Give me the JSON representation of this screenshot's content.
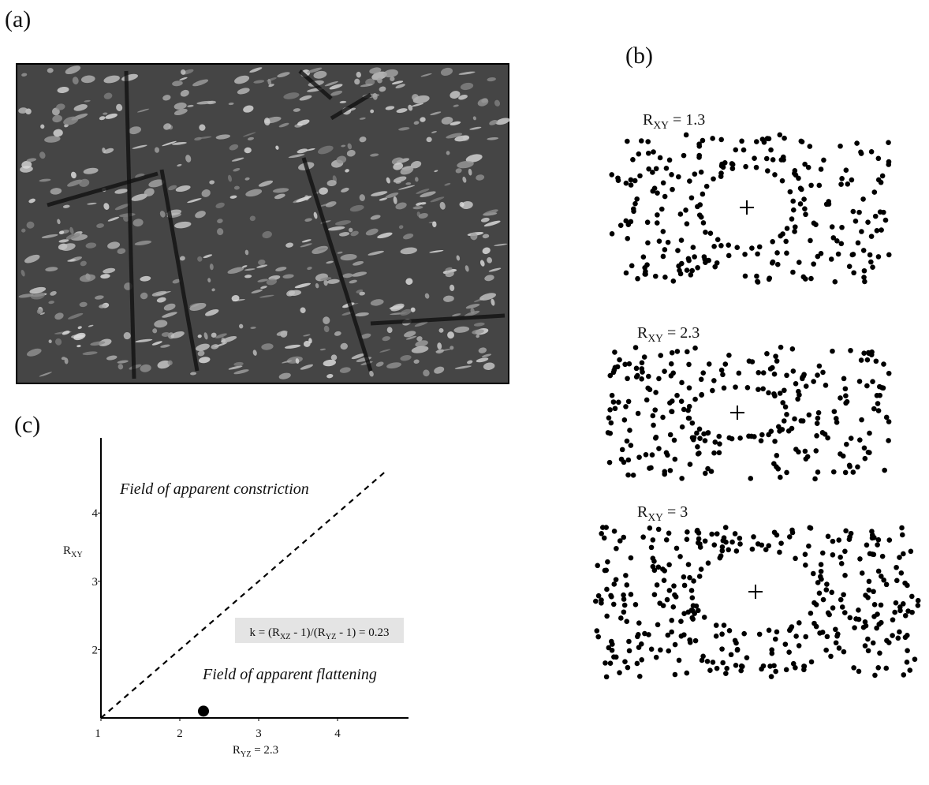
{
  "panel_labels": {
    "a": "(a)",
    "b": "(b)",
    "c": "(c)"
  },
  "panel_b": [
    {
      "label": [
        "R",
        "XY",
        " = 1.3"
      ]
    },
    {
      "label": [
        "R",
        "XY",
        " = 2.3"
      ]
    },
    {
      "label": [
        "R",
        "XY",
        " = 3"
      ]
    }
  ],
  "chart_data": {
    "type": "scatter",
    "x": [
      2.3
    ],
    "values": [
      1.1
    ],
    "xlim": [
      1,
      4.9
    ],
    "ylim": [
      1,
      5.1
    ],
    "xticks": [
      1,
      2,
      3,
      4
    ],
    "yticks": [
      2,
      3,
      4
    ],
    "x_label": [
      "R",
      "YZ",
      " = 2.3"
    ],
    "y_label": [
      "R",
      "XY"
    ],
    "diagonal": {
      "x": [
        1,
        4.6
      ],
      "values": [
        1,
        4.6
      ]
    },
    "annotations": [
      "Field of apparent constriction",
      "Field of apparent flattening"
    ],
    "formula": [
      "k = (R",
      "XZ",
      " - 1)/(R",
      "YZ",
      " - 1) = 0.23"
    ]
  }
}
